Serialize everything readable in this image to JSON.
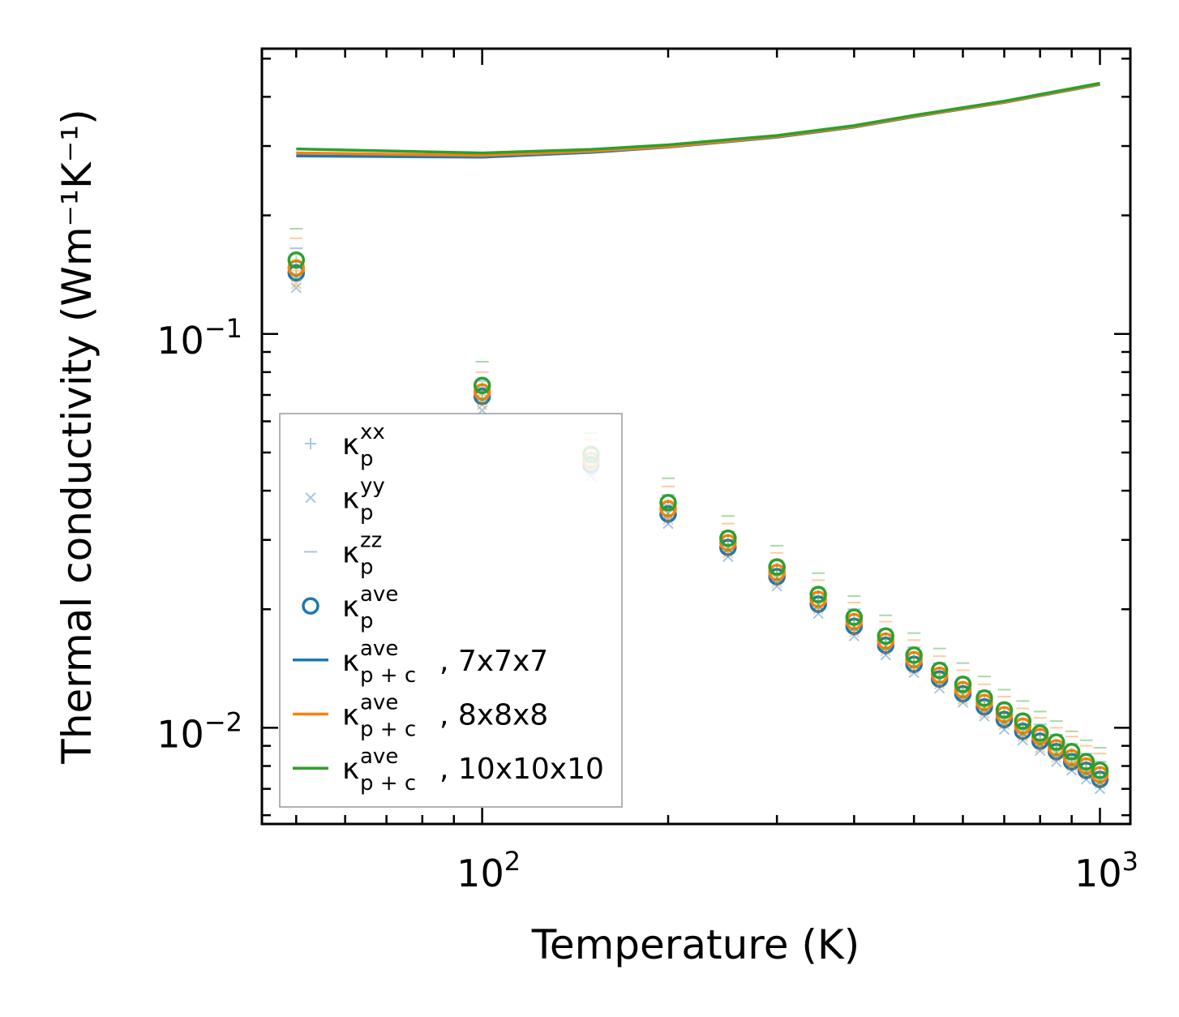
{
  "chart_data": {
    "type": "scatter",
    "xlabel": "Temperature (K)",
    "ylabel": "Thermal conductivity (Wm⁻¹K⁻¹)",
    "xscale": "log",
    "yscale": "log",
    "xlim": [
      44,
      1120
    ],
    "ylim": [
      0.0057,
      0.53
    ],
    "x_ticks": [
      {
        "value": 100,
        "base": "10",
        "exp": "2"
      },
      {
        "value": 1000,
        "base": "10",
        "exp": "3"
      }
    ],
    "y_ticks": [
      {
        "value": 0.1,
        "base": "10",
        "exp": "−1"
      },
      {
        "value": 0.01,
        "base": "10",
        "exp": "−2"
      }
    ],
    "temperatures": [
      50,
      100,
      150,
      200,
      250,
      300,
      350,
      400,
      450,
      500,
      550,
      600,
      650,
      700,
      750,
      800,
      850,
      900,
      950,
      1000
    ],
    "point_series": [
      {
        "mesh": "7x7x7",
        "color": "#1f77b4",
        "k_ave": [
          0.143,
          0.0694,
          0.0465,
          0.0349,
          0.0287,
          0.0242,
          0.0206,
          0.0181,
          0.0162,
          0.0145,
          0.0133,
          0.0122,
          0.0113,
          0.0105,
          0.0098,
          0.00925,
          0.0087,
          0.0082,
          0.0078,
          0.0074
        ],
        "k_xx": [
          0.14,
          0.068,
          0.045,
          0.034,
          0.028,
          0.0236,
          0.0201,
          0.0177,
          0.0158,
          0.0142,
          0.013,
          0.0119,
          0.011,
          0.0102,
          0.00955,
          0.009,
          0.0085,
          0.008,
          0.0076,
          0.0072
        ],
        "k_yy": [
          0.131,
          0.064,
          0.0435,
          0.033,
          0.0272,
          0.0229,
          0.0195,
          0.0171,
          0.0153,
          0.0138,
          0.0126,
          0.0116,
          0.0107,
          0.0099,
          0.0093,
          0.00875,
          0.0082,
          0.0078,
          0.0074,
          0.007
        ],
        "k_zz": [
          0.165,
          0.076,
          0.051,
          0.039,
          0.0315,
          0.0266,
          0.0226,
          0.02,
          0.0178,
          0.016,
          0.0146,
          0.0134,
          0.0124,
          0.0115,
          0.0108,
          0.0102,
          0.0096,
          0.0091,
          0.0086,
          0.0082
        ]
      },
      {
        "mesh": "8x8x8",
        "color": "#ff7f0e",
        "k_ave": [
          0.147,
          0.0712,
          0.0478,
          0.036,
          0.0295,
          0.0248,
          0.0212,
          0.0186,
          0.0166,
          0.0149,
          0.0136,
          0.0125,
          0.0116,
          0.0108,
          0.0101,
          0.0095,
          0.0089,
          0.0084,
          0.008,
          0.0076
        ],
        "k_xx": [
          0.145,
          0.07,
          0.047,
          0.0355,
          0.029,
          0.0244,
          0.0209,
          0.0183,
          0.0164,
          0.0147,
          0.0134,
          0.0123,
          0.0114,
          0.0106,
          0.0099,
          0.0093,
          0.0088,
          0.0083,
          0.0079,
          0.0075
        ],
        "k_yy": [
          0.134,
          0.066,
          0.0448,
          0.0338,
          0.0278,
          0.0234,
          0.02,
          0.0175,
          0.0157,
          0.0141,
          0.0129,
          0.0118,
          0.0109,
          0.0102,
          0.0095,
          0.0089,
          0.0084,
          0.008,
          0.0076,
          0.0072
        ],
        "k_zz": [
          0.175,
          0.08,
          0.054,
          0.041,
          0.033,
          0.0278,
          0.0237,
          0.0208,
          0.0186,
          0.0167,
          0.0152,
          0.014,
          0.0129,
          0.012,
          0.0112,
          0.0106,
          0.01,
          0.0095,
          0.009,
          0.0086
        ]
      },
      {
        "mesh": "10x10x10",
        "color": "#2ca02c",
        "k_ave": [
          0.154,
          0.074,
          0.0495,
          0.0373,
          0.0303,
          0.0256,
          0.0218,
          0.0191,
          0.0171,
          0.0153,
          0.014,
          0.0129,
          0.0119,
          0.0111,
          0.0104,
          0.0097,
          0.0092,
          0.0087,
          0.0082,
          0.0078
        ],
        "k_xx": [
          0.152,
          0.073,
          0.049,
          0.0368,
          0.03,
          0.0253,
          0.0216,
          0.0189,
          0.0169,
          0.0151,
          0.0138,
          0.0127,
          0.0117,
          0.0109,
          0.0102,
          0.0096,
          0.009,
          0.0086,
          0.0081,
          0.0077
        ],
        "k_yy": [
          0.14,
          0.068,
          0.046,
          0.035,
          0.0285,
          0.024,
          0.0205,
          0.018,
          0.0161,
          0.0145,
          0.0132,
          0.0121,
          0.0112,
          0.0104,
          0.0097,
          0.0091,
          0.0086,
          0.0081,
          0.0077,
          0.0073
        ],
        "k_zz": [
          0.185,
          0.085,
          0.056,
          0.043,
          0.0345,
          0.029,
          0.0247,
          0.0216,
          0.0193,
          0.0174,
          0.0159,
          0.0146,
          0.0135,
          0.0125,
          0.0117,
          0.011,
          0.0104,
          0.0098,
          0.0093,
          0.0089
        ]
      }
    ],
    "line_series": [
      {
        "name": "7x7x7",
        "color": "#1f77b4",
        "x": [
          50,
          100,
          150,
          200,
          300,
          400,
          500,
          700,
          1000
        ],
        "y": [
          0.283,
          0.281,
          0.289,
          0.298,
          0.316,
          0.335,
          0.356,
          0.387,
          0.43
        ]
      },
      {
        "name": "8x8x8",
        "color": "#ff7f0e",
        "x": [
          50,
          100,
          150,
          200,
          300,
          400,
          500,
          700,
          1000
        ],
        "y": [
          0.288,
          0.284,
          0.291,
          0.299,
          0.317,
          0.336,
          0.357,
          0.388,
          0.431
        ]
      },
      {
        "name": "10x10x10",
        "color": "#2ca02c",
        "x": [
          50,
          100,
          150,
          200,
          300,
          400,
          500,
          700,
          1000
        ],
        "y": [
          0.295,
          0.288,
          0.294,
          0.302,
          0.319,
          0.338,
          0.359,
          0.39,
          0.433
        ]
      }
    ],
    "legend": {
      "position": "lower-left",
      "entries": [
        {
          "kind": "plus",
          "color": "#1f77b4",
          "base": "κ",
          "sup": "xx",
          "sub": "p",
          "suffix": ""
        },
        {
          "kind": "cross",
          "color": "#1f77b4",
          "base": "κ",
          "sup": "yy",
          "sub": "p",
          "suffix": ""
        },
        {
          "kind": "dash",
          "color": "#1f77b4",
          "base": "κ",
          "sup": "zz",
          "sub": "p",
          "suffix": ""
        },
        {
          "kind": "circle",
          "color": "#1f77b4",
          "base": "κ",
          "sup": "ave",
          "sub": "p",
          "suffix": ""
        },
        {
          "kind": "line",
          "color": "#1f77b4",
          "base": "κ",
          "sup": "ave",
          "sub": "p + c",
          "suffix": ", 7x7x7"
        },
        {
          "kind": "line",
          "color": "#ff7f0e",
          "base": "κ",
          "sup": "ave",
          "sub": "p + c",
          "suffix": ", 8x8x8"
        },
        {
          "kind": "line",
          "color": "#2ca02c",
          "base": "κ",
          "sup": "ave",
          "sub": "p + c",
          "suffix": ", 10x10x10"
        }
      ]
    }
  }
}
